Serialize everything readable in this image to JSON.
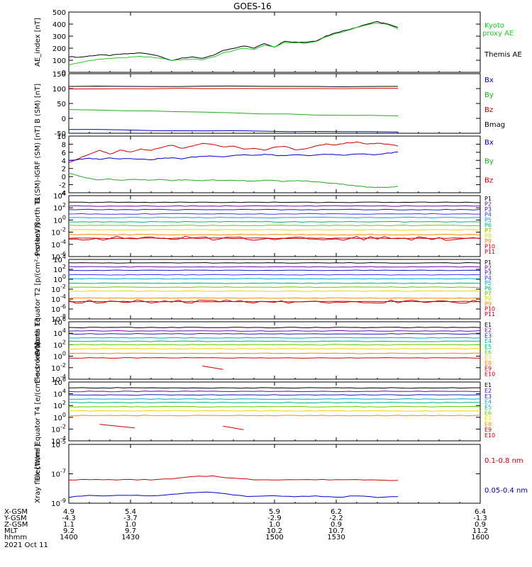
{
  "title": "GOES-16",
  "chart_data": [
    {
      "type": "line",
      "ylabel": "AE_index [nT]",
      "ylim": [
        0,
        500
      ],
      "yticks": [
        "500",
        "400",
        "300",
        "200",
        "100",
        "0"
      ],
      "legend": [
        {
          "name": "Kyoto",
          "color": "#22cc22"
        },
        {
          "name": "proxy AE",
          "color": "#22cc22"
        },
        {
          "name": "Themis AE",
          "color": "#000000"
        }
      ],
      "x": [
        1400,
        1405,
        1410,
        1415,
        1420,
        1425,
        1430,
        1435,
        1440,
        1445,
        1450,
        1455,
        1460,
        1465,
        1470,
        1475,
        1480,
        1485,
        1490,
        1495,
        1500,
        1505,
        1510,
        1515,
        1520,
        1525,
        1530,
        1535,
        1540,
        1545,
        1550,
        1555,
        1560
      ],
      "series": [
        {
          "name": "Themis AE",
          "color": "#000000",
          "values": [
            130,
            125,
            135,
            145,
            140,
            150,
            155,
            160,
            150,
            130,
            95,
            120,
            125,
            115,
            140,
            180,
            200,
            220,
            200,
            240,
            210,
            260,
            250,
            250,
            260,
            300,
            330,
            350,
            375,
            400,
            420,
            400,
            370
          ]
        },
        {
          "name": "Kyoto proxy AE",
          "color": "#22cc22",
          "values": [
            60,
            80,
            95,
            110,
            115,
            120,
            125,
            130,
            125,
            115,
            100,
            105,
            110,
            105,
            125,
            160,
            180,
            200,
            190,
            225,
            210,
            245,
            245,
            240,
            255,
            295,
            320,
            345,
            370,
            395,
            410,
            395,
            360
          ]
        }
      ]
    },
    {
      "type": "line",
      "ylabel": "B (SM) [nT]",
      "ylim": [
        -50,
        150
      ],
      "yticks": [
        "150",
        "100",
        "50",
        "0",
        "-50"
      ],
      "legend": [
        {
          "name": "Bx",
          "color": "#0000cc"
        },
        {
          "name": "By",
          "color": "#22aa22"
        },
        {
          "name": "Bz",
          "color": "#cc0000"
        },
        {
          "name": "Bmag",
          "color": "#000000"
        }
      ],
      "x": [
        1400,
        1440,
        1480,
        1520,
        1560
      ],
      "series": [
        {
          "name": "Bmag",
          "color": "#000000",
          "values": [
            108,
            107,
            108,
            107,
            107
          ]
        },
        {
          "name": "Bz",
          "color": "#cc0000",
          "values": [
            100,
            100,
            100,
            100,
            100
          ]
        },
        {
          "name": "By",
          "color": "#22aa22",
          "values": [
            30,
            24,
            18,
            12,
            8
          ]
        },
        {
          "name": "Bx",
          "color": "#0000cc",
          "values": [
            -37,
            -40,
            -42,
            -44,
            -46
          ]
        }
      ]
    },
    {
      "type": "line",
      "ylabel": "B (SM)-IGRF (SM) [nT]",
      "ylim": [
        -4,
        10
      ],
      "yticks": [
        "10",
        "8",
        "6",
        "4",
        "2",
        "0",
        "-2",
        "-4"
      ],
      "legend": [
        {
          "name": "Bx",
          "color": "#0000cc"
        },
        {
          "name": "By",
          "color": "#22aa22"
        },
        {
          "name": "Bz",
          "color": "#cc0000"
        }
      ],
      "x": [
        1400,
        1405,
        1410,
        1415,
        1420,
        1425,
        1430,
        1435,
        1440,
        1445,
        1450,
        1455,
        1460,
        1465,
        1470,
        1475,
        1480,
        1485,
        1490,
        1495,
        1500,
        1505,
        1510,
        1515,
        1520,
        1525,
        1530,
        1535,
        1540,
        1545,
        1550,
        1555,
        1560
      ],
      "series": [
        {
          "name": "Bz",
          "color": "#cc0000",
          "values": [
            3.5,
            4.5,
            5.5,
            6.5,
            5.5,
            6.5,
            6.0,
            6.8,
            6.5,
            7.2,
            7.8,
            7.0,
            7.5,
            8.2,
            8.0,
            7.3,
            7.5,
            6.8,
            7.0,
            6.5,
            7.2,
            7.5,
            6.6,
            6.8,
            7.5,
            8.0,
            7.8,
            8.3,
            8.5,
            8.0,
            8.2,
            8.0,
            7.6
          ]
        },
        {
          "name": "Bx",
          "color": "#0000cc",
          "values": [
            4.0,
            4.2,
            4.5,
            4.3,
            4.6,
            4.4,
            4.5,
            4.3,
            4.2,
            4.5,
            4.6,
            4.4,
            4.8,
            5.0,
            5.1,
            4.9,
            5.2,
            5.4,
            5.2,
            5.5,
            5.3,
            5.1,
            5.4,
            5.2,
            5.3,
            5.5,
            5.4,
            5.3,
            5.6,
            5.5,
            5.4,
            5.8,
            6.0
          ]
        },
        {
          "name": "By",
          "color": "#22aa22",
          "values": [
            0.8,
            0.2,
            -0.5,
            -0.8,
            -0.6,
            -0.9,
            -0.7,
            -0.8,
            -0.9,
            -0.7,
            -1.0,
            -0.8,
            -0.9,
            -1.0,
            -0.8,
            -1.0,
            -0.9,
            -1.0,
            -1.1,
            -0.9,
            -1.0,
            -1.2,
            -1.0,
            -1.1,
            -1.3,
            -1.5,
            -1.7,
            -2.0,
            -2.3,
            -2.6,
            -2.7,
            -2.6,
            -2.4
          ]
        }
      ]
    },
    {
      "type": "line",
      "ylabel": "Protons North T1",
      "scale": "log",
      "ylim_exp": [
        -6,
        4
      ],
      "yticks": [
        "10^4",
        "10^2",
        "10^0",
        "10^-2",
        "10^-4",
        "10^-6"
      ],
      "legend": [
        "P1",
        "P2",
        "P3",
        "P4",
        "P5",
        "P6",
        "P7",
        "P8",
        "P9",
        "P10",
        "P11"
      ],
      "series": [
        {
          "name": "P1",
          "color": "#000000",
          "value_exp": 2.9
        },
        {
          "name": "P2",
          "color": "#6a0dad",
          "value_exp": 2.3
        },
        {
          "name": "P3",
          "color": "#1f1fbf",
          "value_exp": 1.7
        },
        {
          "name": "P4",
          "color": "#3a3aff",
          "value_exp": 1.0
        },
        {
          "name": "P5",
          "color": "#00a8d8",
          "value_exp": 0.4
        },
        {
          "name": "P6",
          "color": "#00b080",
          "value_exp": -0.3
        },
        {
          "name": "P7",
          "color": "#66cc00",
          "value_exp": -0.9
        },
        {
          "name": "P8",
          "color": "#e8d800",
          "value_exp": -1.6
        },
        {
          "name": "P9",
          "color": "#ff8800",
          "value_exp": -2.4
        },
        {
          "name": "P10",
          "color": "#cc0000",
          "value_exp": -3.0,
          "noisy": true
        },
        {
          "name": "P11",
          "color": "#cc0000",
          "value_exp": -3.0,
          "noisy": false
        }
      ]
    },
    {
      "type": "line",
      "ylabel": "Protons Equator T2 [p/(cm²-s-sr-keV)]",
      "scale": "log",
      "ylim_exp": [
        -8,
        4
      ],
      "yticks": [
        "10^4",
        "10^2",
        "10^0",
        "10^-2",
        "10^-4",
        "10^-6",
        "10^-8"
      ],
      "legend": [
        "P1",
        "P2",
        "P3",
        "P4",
        "P5",
        "P6",
        "P7",
        "P8",
        "P9",
        "P10",
        "P11"
      ],
      "series": [
        {
          "name": "P1",
          "color": "#000000",
          "value_exp": 3.3
        },
        {
          "name": "P2",
          "color": "#6a0dad",
          "value_exp": 2.5
        },
        {
          "name": "P3",
          "color": "#1f1fbf",
          "value_exp": 1.8
        },
        {
          "name": "P4",
          "color": "#3a3aff",
          "value_exp": 0.9
        },
        {
          "name": "P5",
          "color": "#00a8d8",
          "value_exp": 0.1
        },
        {
          "name": "P6",
          "color": "#00b080",
          "value_exp": -0.8
        },
        {
          "name": "P7",
          "color": "#66cc00",
          "value_exp": -1.6
        },
        {
          "name": "P8",
          "color": "#e8d800",
          "value_exp": -2.4
        },
        {
          "name": "P9",
          "color": "#ff8800",
          "value_exp": -3.8
        },
        {
          "name": "P10",
          "color": "#cc0000",
          "value_exp": -4.5,
          "noisy": true
        },
        {
          "name": "P11",
          "color": "#cc0000",
          "value_exp": -4.5,
          "noisy": false
        }
      ]
    },
    {
      "type": "line",
      "ylabel": "Electrons North T3",
      "scale": "log",
      "ylim_exp": [
        -4,
        6
      ],
      "yticks": [
        "10^6",
        "10^4",
        "10^2",
        "10^0",
        "10^-2",
        "10^-4"
      ],
      "legend": [
        "E1",
        "E2",
        "E3",
        "E4",
        "E5",
        "E6",
        "E7",
        "E8",
        "E9",
        "E10"
      ],
      "series": [
        {
          "name": "E1",
          "color": "#000000",
          "value_exp": 5.0
        },
        {
          "name": "E2",
          "color": "#6a0dad",
          "value_exp": 4.4
        },
        {
          "name": "E3",
          "color": "#1f1fbf",
          "value_exp": 3.9
        },
        {
          "name": "E4",
          "color": "#00a8d8",
          "value_exp": 3.2
        },
        {
          "name": "E5",
          "color": "#00b080",
          "value_exp": 2.6
        },
        {
          "name": "E6",
          "color": "#66cc00",
          "value_exp": 2.0
        },
        {
          "name": "E7",
          "color": "#e8d800",
          "value_exp": 1.3
        },
        {
          "name": "E8",
          "color": "#ff8800",
          "value_exp": 0.5
        },
        {
          "name": "E9",
          "color": "#cc0000",
          "value_exp": -0.3
        },
        {
          "name": "E10",
          "color": "#cc0000",
          "value_exp": -2.0,
          "segment": [
            1465,
            1475
          ]
        }
      ]
    },
    {
      "type": "line",
      "ylabel": "Electrons Equator T4 [e/(cm²-s-sr-keV)]",
      "scale": "log",
      "ylim_exp": [
        -4,
        6
      ],
      "yticks": [
        "10^6",
        "10^4",
        "10^2",
        "10^0",
        "10^-2",
        "10^-4"
      ],
      "legend": [
        "E1",
        "E2",
        "E3",
        "E4",
        "E5",
        "E6",
        "E7",
        "E8",
        "E9",
        "E10"
      ],
      "series": [
        {
          "name": "E1",
          "color": "#000000",
          "value_exp": 5.0
        },
        {
          "name": "E2",
          "color": "#6a0dad",
          "value_exp": 4.4
        },
        {
          "name": "E3",
          "color": "#1f1fbf",
          "value_exp": 3.8
        },
        {
          "name": "E4",
          "color": "#00a8d8",
          "value_exp": 3.1
        },
        {
          "name": "E5",
          "color": "#00b080",
          "value_exp": 2.5
        },
        {
          "name": "E6",
          "color": "#66cc00",
          "value_exp": 1.8
        },
        {
          "name": "E7",
          "color": "#e8d800",
          "value_exp": 1.1
        },
        {
          "name": "E8",
          "color": "#ff8800",
          "value_exp": 0.3
        },
        {
          "name": "E9",
          "color": "#cc0000",
          "value_exp": -1.5,
          "segment": [
            1415,
            1432
          ]
        },
        {
          "name": "E10",
          "color": "#cc0000",
          "value_exp": -1.8,
          "segment": [
            1475,
            1485
          ]
        }
      ]
    },
    {
      "type": "line",
      "ylabel": "Xray flux [W/m²]",
      "scale": "log",
      "ylim_exp": [
        -9,
        -5
      ],
      "yticks": [
        "10^-5",
        "10^-7",
        "10^-9"
      ],
      "legend": [
        {
          "name": "0.1-0.8 nm",
          "color": "#cc0000"
        },
        {
          "name": "0.05-0.4 nm",
          "color": "#0000cc"
        }
      ],
      "x": [
        1400,
        1410,
        1420,
        1430,
        1440,
        1450,
        1460,
        1470,
        1480,
        1490,
        1500,
        1510,
        1520,
        1530,
        1540,
        1550,
        1560
      ],
      "series": [
        {
          "name": "0.1-0.8 nm",
          "color": "#cc0000",
          "values_exp": [
            -7.4,
            -7.4,
            -7.4,
            -7.4,
            -7.4,
            -7.35,
            -7.2,
            -7.15,
            -7.3,
            -7.4,
            -7.4,
            -7.4,
            -7.4,
            -7.4,
            -7.4,
            -7.4,
            -7.45
          ]
        },
        {
          "name": "0.05-0.4 nm",
          "color": "#0000cc",
          "values_exp": [
            -8.6,
            -8.45,
            -8.5,
            -8.45,
            -8.5,
            -8.4,
            -8.3,
            -8.25,
            -8.45,
            -8.55,
            -8.5,
            -8.55,
            -8.5,
            -8.6,
            -8.5,
            -8.6,
            -8.55
          ]
        }
      ]
    }
  ],
  "x_axis": {
    "row_labels": [
      "X-GSM",
      "Y-GSM",
      "Z-GSM",
      "MLT",
      "hhmm",
      "2021 Oct 11"
    ],
    "ticks": [
      1400,
      1430,
      1500,
      1530,
      1600
    ],
    "columns": [
      [
        "4.9",
        "-4.3",
        "1.1",
        "9.2",
        "1400"
      ],
      [
        "5.4",
        "-3.7",
        "1.0",
        "9.7",
        "1430"
      ],
      [
        "5.9",
        "-2.9",
        "1.0",
        "10.2",
        "1500"
      ],
      [
        "6.2",
        "-2.2",
        "0.9",
        "10.7",
        "1530"
      ],
      [
        "6.4",
        "-1.3",
        "0.9",
        "11.2",
        "1600"
      ]
    ]
  }
}
